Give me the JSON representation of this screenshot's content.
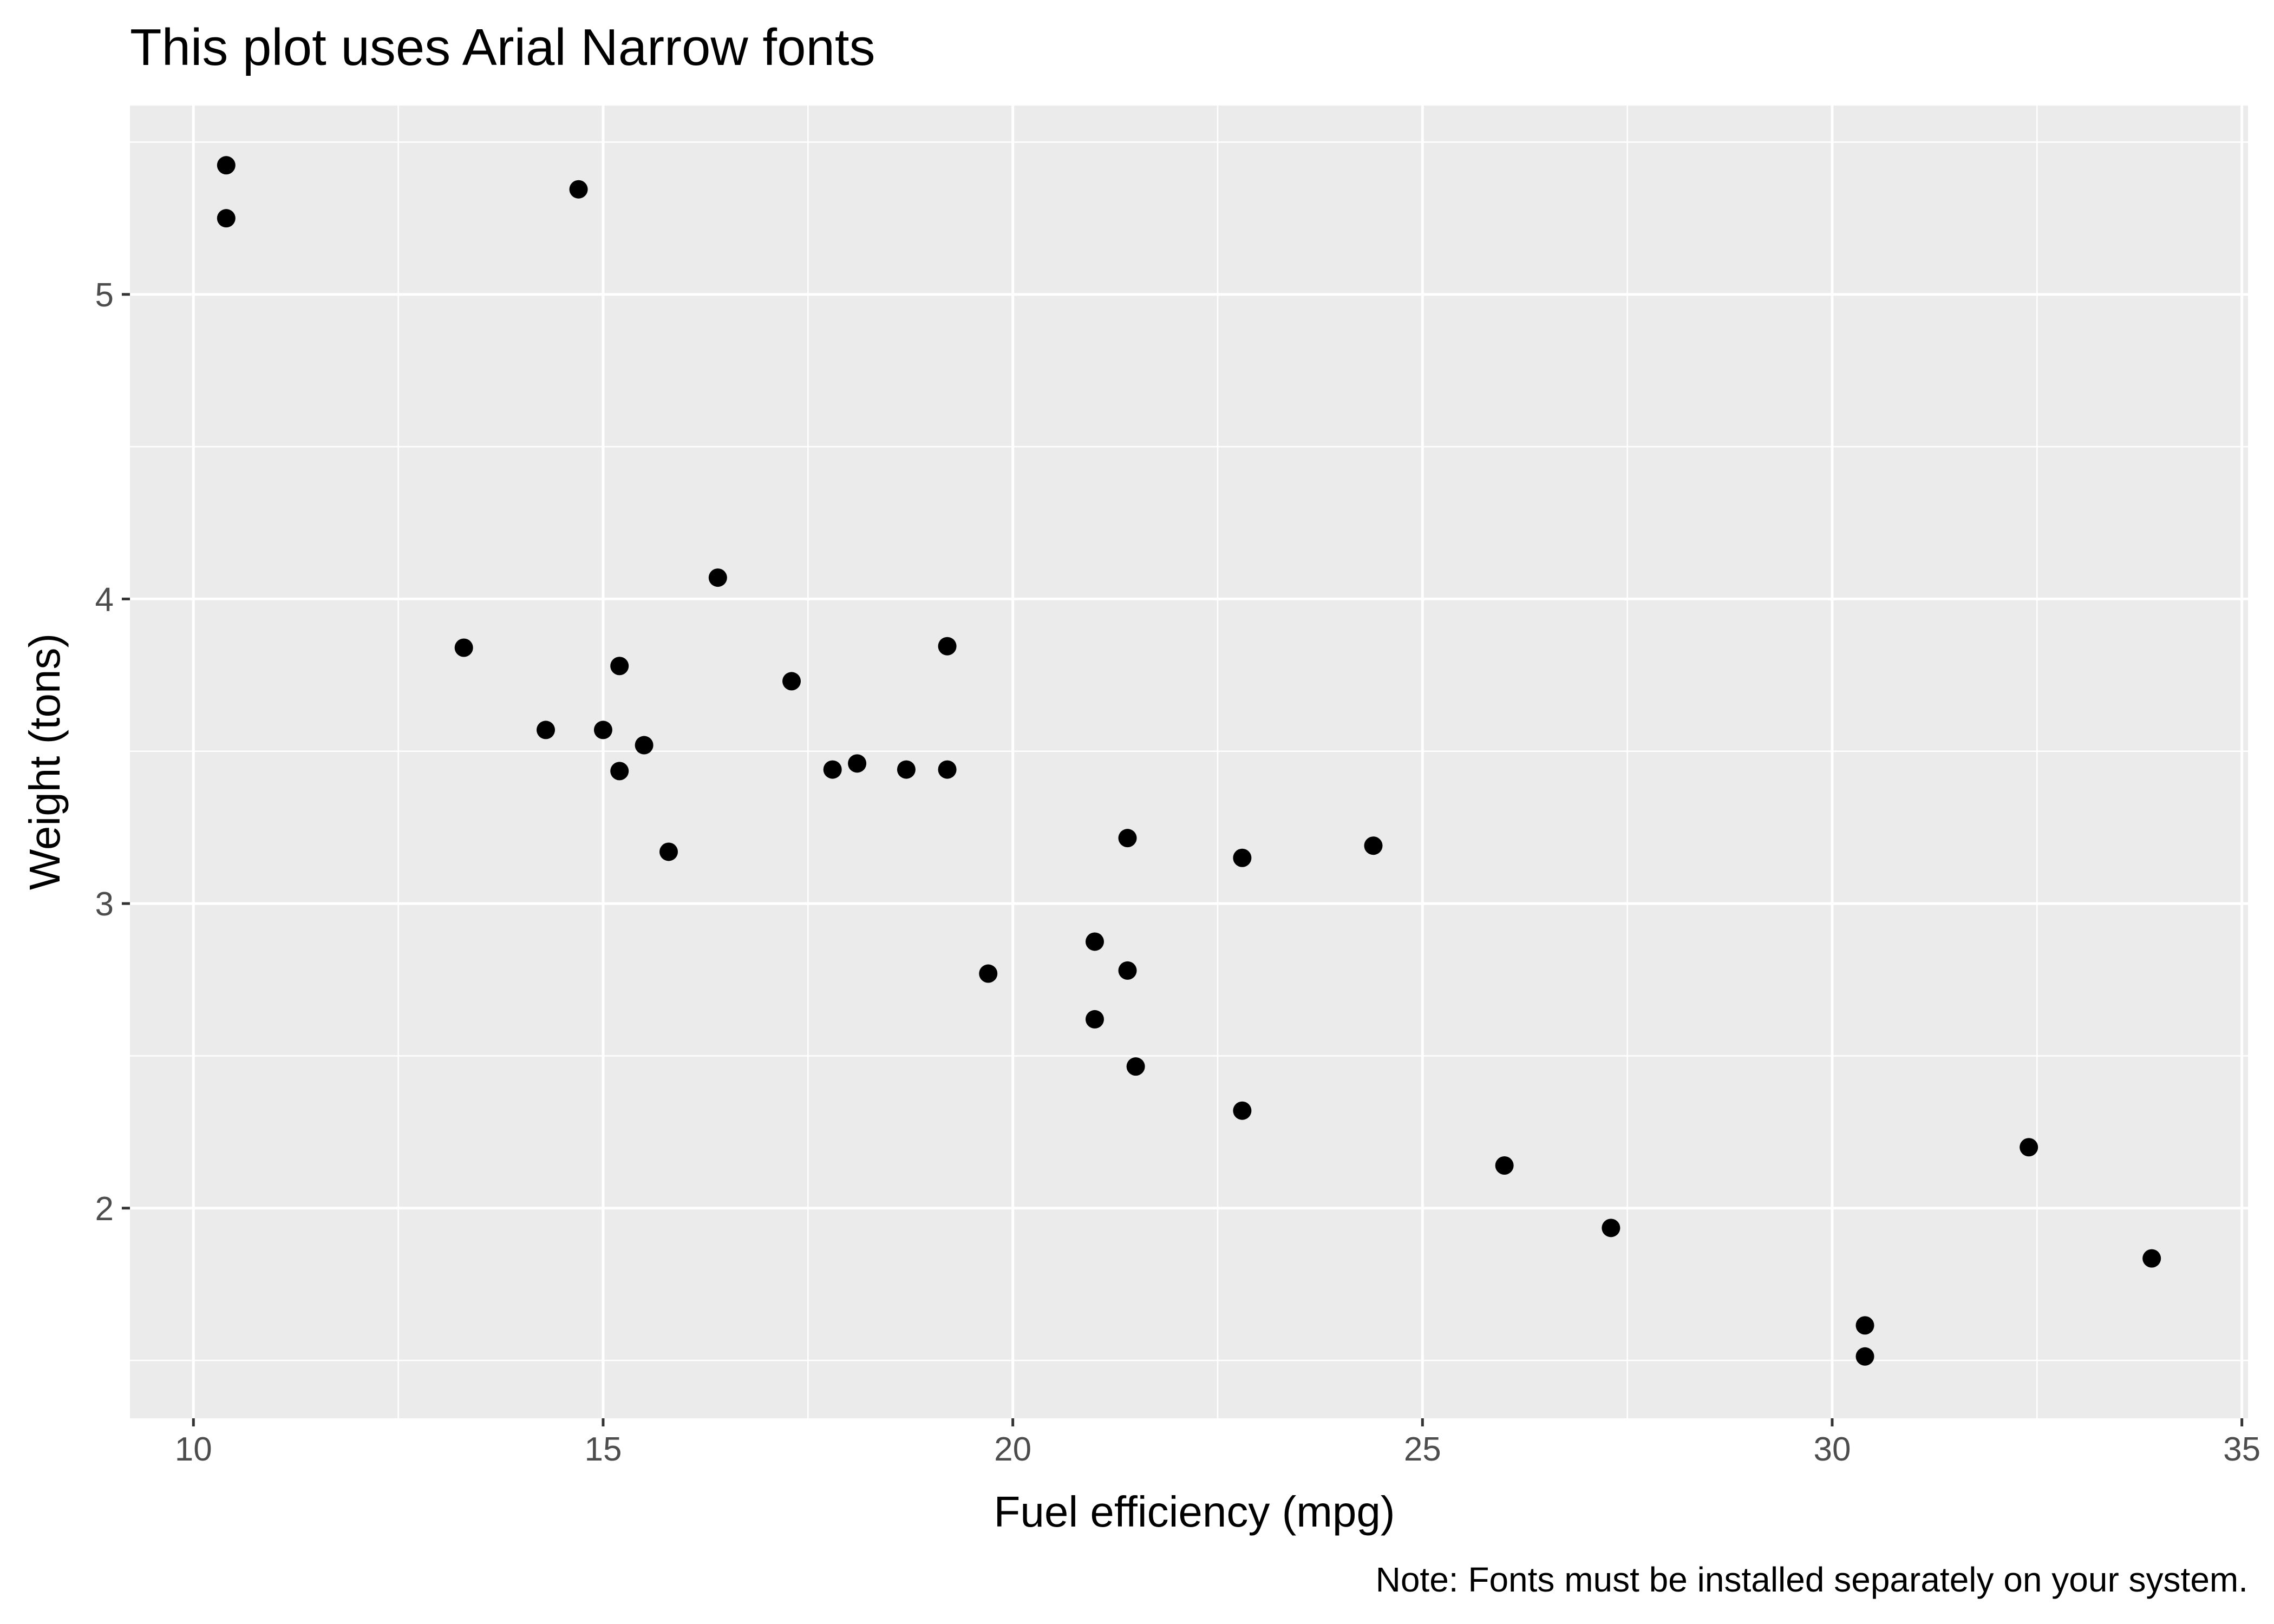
{
  "chart_data": {
    "type": "scatter",
    "title": "This plot uses Arial Narrow fonts",
    "xlabel": "Fuel efficiency (mpg)",
    "ylabel": "Weight (tons)",
    "caption": "Note: Fonts must be installed separately on your system.",
    "xlim": [
      9.225,
      35.075
    ],
    "ylim": [
      1.31,
      5.62
    ],
    "x_ticks": [
      10,
      15,
      20,
      25,
      30,
      35
    ],
    "y_ticks": [
      2,
      3,
      4,
      5
    ],
    "x_tick_labels": [
      "10",
      "15",
      "20",
      "25",
      "30",
      "35"
    ],
    "y_tick_labels": [
      "2",
      "3",
      "4",
      "5"
    ],
    "grid": true,
    "legend": "none",
    "colors": {
      "panel_background": "#ebebeb",
      "grid_line": "#ffffff",
      "point": "#000000",
      "tick": "#333333",
      "tick_label": "#4d4d4d"
    },
    "points": [
      {
        "x": 21.0,
        "y": 2.62
      },
      {
        "x": 21.0,
        "y": 2.875
      },
      {
        "x": 22.8,
        "y": 2.32
      },
      {
        "x": 21.4,
        "y": 3.215
      },
      {
        "x": 18.7,
        "y": 3.44
      },
      {
        "x": 18.1,
        "y": 3.46
      },
      {
        "x": 14.3,
        "y": 3.57
      },
      {
        "x": 24.4,
        "y": 3.19
      },
      {
        "x": 22.8,
        "y": 3.15
      },
      {
        "x": 19.2,
        "y": 3.44
      },
      {
        "x": 17.8,
        "y": 3.44
      },
      {
        "x": 16.4,
        "y": 4.07
      },
      {
        "x": 17.3,
        "y": 3.73
      },
      {
        "x": 15.2,
        "y": 3.78
      },
      {
        "x": 10.4,
        "y": 5.25
      },
      {
        "x": 10.4,
        "y": 5.424
      },
      {
        "x": 14.7,
        "y": 5.345
      },
      {
        "x": 32.4,
        "y": 2.2
      },
      {
        "x": 30.4,
        "y": 1.615
      },
      {
        "x": 33.9,
        "y": 1.835
      },
      {
        "x": 21.5,
        "y": 2.465
      },
      {
        "x": 15.5,
        "y": 3.52
      },
      {
        "x": 15.2,
        "y": 3.435
      },
      {
        "x": 13.3,
        "y": 3.84
      },
      {
        "x": 19.2,
        "y": 3.845
      },
      {
        "x": 27.3,
        "y": 1.935
      },
      {
        "x": 26.0,
        "y": 2.14
      },
      {
        "x": 30.4,
        "y": 1.513
      },
      {
        "x": 15.8,
        "y": 3.17
      },
      {
        "x": 19.7,
        "y": 2.77
      },
      {
        "x": 15.0,
        "y": 3.57
      },
      {
        "x": 21.4,
        "y": 2.78
      }
    ]
  }
}
